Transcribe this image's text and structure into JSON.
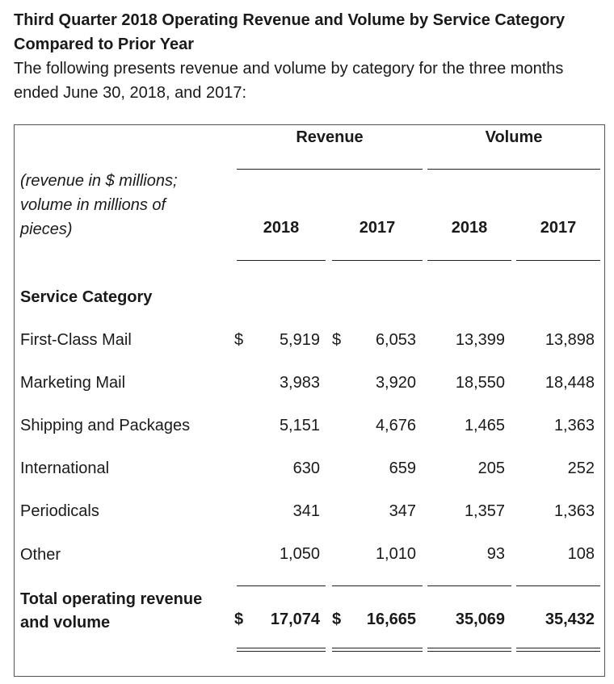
{
  "title": "Third Quarter 2018 Operating Revenue and Volume by Service Category Compared to Prior Year",
  "intro": "The following presents revenue and volume by category for the three months ended June 30, 2018, and 2017:",
  "table": {
    "group_headers": {
      "revenue": "Revenue",
      "volume": "Volume"
    },
    "units_note": {
      "line1": "(revenue in $ millions;",
      "line2": "volume in millions of",
      "line3": "pieces)"
    },
    "years": {
      "rev_2018": "2018",
      "rev_2017": "2017",
      "vol_2018": "2018",
      "vol_2017": "2017"
    },
    "section_label": "Service Category",
    "currency_symbol": "$",
    "rows": [
      {
        "label": "First-Class Mail",
        "rev_2018": "5,919",
        "rev_2017": "6,053",
        "vol_2018": "13,399",
        "vol_2017": "13,898"
      },
      {
        "label": "Marketing Mail",
        "rev_2018": "3,983",
        "rev_2017": "3,920",
        "vol_2018": "18,550",
        "vol_2017": "18,448"
      },
      {
        "label": "Shipping and Packages",
        "rev_2018": "5,151",
        "rev_2017": "4,676",
        "vol_2018": "1,465",
        "vol_2017": "1,363"
      },
      {
        "label": "International",
        "rev_2018": "630",
        "rev_2017": "659",
        "vol_2018": "205",
        "vol_2017": "252"
      },
      {
        "label": "Periodicals",
        "rev_2018": "341",
        "rev_2017": "347",
        "vol_2018": "1,357",
        "vol_2017": "1,363"
      },
      {
        "label": "Other",
        "rev_2018": "1,050",
        "rev_2017": "1,010",
        "vol_2018": "93",
        "vol_2017": "108"
      }
    ],
    "total": {
      "label_line1": "Total operating revenue",
      "label_line2": "and volume",
      "rev_2018": "17,074",
      "rev_2017": "16,665",
      "vol_2018": "35,069",
      "vol_2017": "35,432"
    }
  }
}
